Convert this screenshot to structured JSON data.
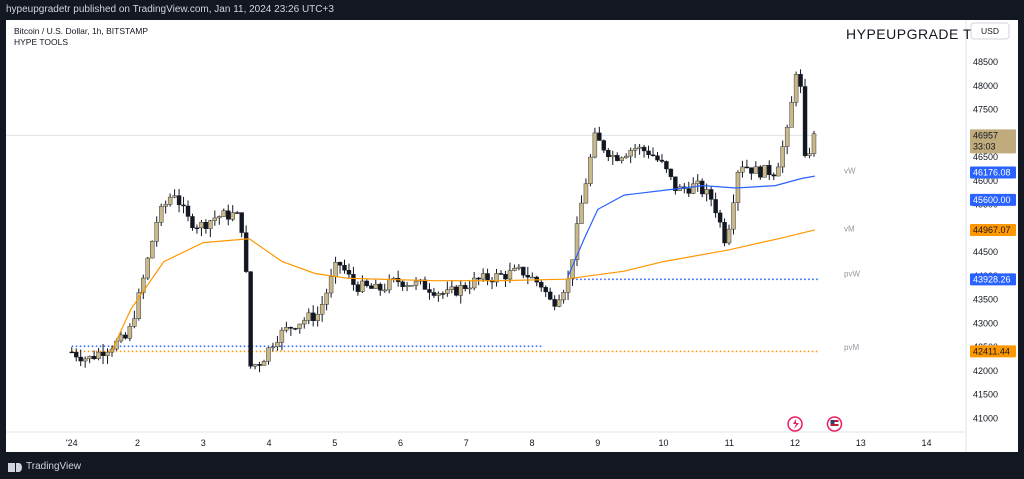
{
  "header": {
    "published_text": "hypeupgradetr published on TradingView.com, Jan 11, 2024 23:26 UTC+3"
  },
  "footer": {
    "brand": "TradingView"
  },
  "legend": {
    "line1": "Bitcoin / U.S. Dollar, 1h, BITSTAMP",
    "line2": "HYPE TOOLS"
  },
  "watermark": "HYPEUPGRADE TR",
  "currency_button": "USD",
  "chart_data": {
    "type": "candlestick",
    "symbol": "Bitcoin / U.S. Dollar",
    "interval": "1h",
    "exchange": "BITSTAMP",
    "indicator": "HYPE TOOLS",
    "ylim": [
      40800,
      49300
    ],
    "yticks": [
      41000,
      41500,
      42000,
      42500,
      43000,
      43500,
      44000,
      44500,
      45000,
      45500,
      46000,
      46500,
      47000,
      47500,
      48000,
      48500
    ],
    "xlim": [
      0.0,
      14.6
    ],
    "xticks": [
      {
        "x": 1,
        "label": "'24"
      },
      {
        "x": 2,
        "label": "2"
      },
      {
        "x": 3,
        "label": "3"
      },
      {
        "x": 4,
        "label": "4"
      },
      {
        "x": 5,
        "label": "5"
      },
      {
        "x": 6,
        "label": "6"
      },
      {
        "x": 7,
        "label": "7"
      },
      {
        "x": 8,
        "label": "8"
      },
      {
        "x": 9,
        "label": "9"
      },
      {
        "x": 10,
        "label": "10"
      },
      {
        "x": 11,
        "label": "11"
      },
      {
        "x": 12,
        "label": "12"
      },
      {
        "x": 13,
        "label": "13"
      },
      {
        "x": 14,
        "label": "14"
      }
    ],
    "price_path": [
      [
        1.0,
        42400
      ],
      [
        1.25,
        42250
      ],
      [
        1.55,
        42500
      ],
      [
        1.85,
        42700
      ],
      [
        2.05,
        43700
      ],
      [
        2.3,
        45200
      ],
      [
        2.55,
        45800
      ],
      [
        2.75,
        45200
      ],
      [
        2.95,
        45050
      ],
      [
        3.2,
        45250
      ],
      [
        3.5,
        45300
      ],
      [
        3.62,
        44900
      ],
      [
        3.72,
        42100
      ],
      [
        3.88,
        42200
      ],
      [
        4.1,
        42700
      ],
      [
        4.4,
        43000
      ],
      [
        4.75,
        43200
      ],
      [
        5.05,
        44300
      ],
      [
        5.3,
        43800
      ],
      [
        5.65,
        43700
      ],
      [
        5.95,
        43900
      ],
      [
        6.35,
        43800
      ],
      [
        6.7,
        43600
      ],
      [
        7.15,
        43900
      ],
      [
        7.5,
        44000
      ],
      [
        7.85,
        44100
      ],
      [
        8.15,
        43800
      ],
      [
        8.3,
        43400
      ],
      [
        8.55,
        43900
      ],
      [
        8.75,
        45500
      ],
      [
        8.95,
        46900
      ],
      [
        9.25,
        46500
      ],
      [
        9.55,
        46700
      ],
      [
        9.8,
        46600
      ],
      [
        10.0,
        46300
      ],
      [
        10.2,
        45800
      ],
      [
        10.5,
        45900
      ],
      [
        10.75,
        45600
      ],
      [
        10.95,
        44700
      ],
      [
        11.15,
        46400
      ],
      [
        11.4,
        46200
      ],
      [
        11.7,
        46200
      ],
      [
        11.9,
        47100
      ],
      [
        12.05,
        48700
      ],
      [
        12.15,
        46400
      ],
      [
        12.3,
        46957
      ]
    ],
    "vw_line": [
      [
        8.55,
        44000
      ],
      [
        8.8,
        44800
      ],
      [
        9.0,
        45400
      ],
      [
        9.4,
        45700
      ],
      [
        10.0,
        45800
      ],
      [
        10.6,
        45900
      ],
      [
        11.1,
        45850
      ],
      [
        11.7,
        45900
      ],
      [
        12.1,
        46050
      ],
      [
        12.3,
        46100
      ]
    ],
    "vm_line": [
      [
        1.6,
        42400
      ],
      [
        1.9,
        43300
      ],
      [
        2.4,
        44300
      ],
      [
        3.0,
        44700
      ],
      [
        3.7,
        44780
      ],
      [
        4.2,
        44300
      ],
      [
        4.7,
        44050
      ],
      [
        5.2,
        43950
      ],
      [
        6.5,
        43900
      ],
      [
        7.5,
        43900
      ],
      [
        8.5,
        43930
      ],
      [
        9.4,
        44100
      ],
      [
        10.0,
        44300
      ],
      [
        11.0,
        44550
      ],
      [
        11.8,
        44800
      ],
      [
        12.3,
        44967
      ]
    ],
    "horizontal_lines": [
      {
        "name": "pvW-line",
        "y": 43928.26,
        "x_from": 8.55,
        "x_to": 12.35,
        "color": "#2962ff",
        "style": "dotted"
      },
      {
        "name": "prev-level-line",
        "y": 42520,
        "x_from": 1.0,
        "x_to": 8.15,
        "color": "#2962ff",
        "style": "dotted"
      },
      {
        "name": "pvM-line",
        "y": 42411.44,
        "x_from": 1.0,
        "x_to": 12.35,
        "color": "#ff9800",
        "style": "dotted"
      },
      {
        "name": "current-price-line",
        "y": 46957,
        "x_from": 0.0,
        "x_to": 12.35,
        "color": "#e0e3eb",
        "style": "solid"
      }
    ],
    "level_labels": [
      {
        "name": "vW",
        "y": 46220
      },
      {
        "name": "vM",
        "y": 45000
      },
      {
        "name": "pvW",
        "y": 44050
      },
      {
        "name": "pvM",
        "y": 42500
      }
    ],
    "price_badges": [
      {
        "name": "last-price",
        "value": "46957",
        "sub": "33:03",
        "y": 46957,
        "bg": "#bfab7c",
        "fg": "#131722"
      },
      {
        "name": "vW",
        "value": "46176.08",
        "y": 46176.08,
        "bg": "#2962ff",
        "fg": "#ffffff"
      },
      {
        "name": "level",
        "value": "45600.00",
        "y": 45600,
        "bg": "#2962ff",
        "fg": "#ffffff"
      },
      {
        "name": "vM",
        "value": "44967.07",
        "y": 44967.07,
        "bg": "#ff9800",
        "fg": "#131722"
      },
      {
        "name": "pvW",
        "value": "43928.26",
        "y": 43928.26,
        "bg": "#2962ff",
        "fg": "#ffffff"
      },
      {
        "name": "pvM",
        "value": "42411.44",
        "y": 42411.44,
        "bg": "#ff9800",
        "fg": "#131722"
      }
    ],
    "colors": {
      "candle_up": "#c8b88a",
      "candle_down": "#131722",
      "vw_line": "#2962ff",
      "vm_line": "#ff9800",
      "wick": "#131722"
    },
    "grid": false
  }
}
